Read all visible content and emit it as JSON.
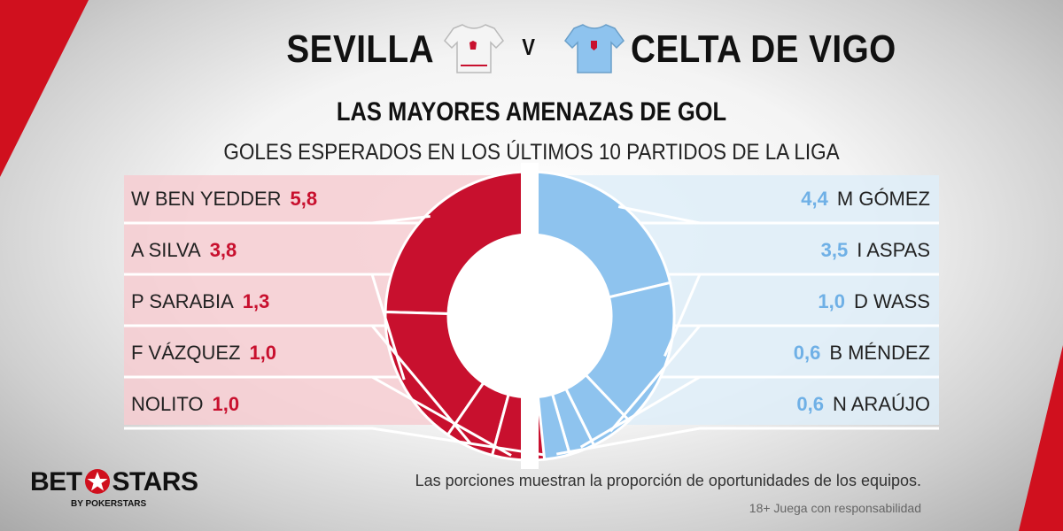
{
  "header": {
    "home_team": "SEVILLA",
    "vs": "V",
    "away_team": "CELTA DE VIGO"
  },
  "title": "LAS MAYORES AMENAZAS DE GOL",
  "subtitle": "GOLES ESPERADOS EN LOS ÚLTIMOS 10 PARTIDOS DE LA LIGA",
  "colors": {
    "home": "#c8102e",
    "home_panel": "#f6cdd1",
    "away": "#8ec3ee",
    "away_panel": "#deedf8",
    "rest": "#e3e3e3"
  },
  "chart_data": {
    "type": "pie",
    "title": "LAS MAYORES AMENAZAS DE GOL",
    "subtitle": "GOLES ESPERADOS EN LOS ÚLTIMOS 10 PARTIDOS DE LA LIGA",
    "series": [
      {
        "name": "SEVILLA",
        "labels": [
          "W BEN YEDDER",
          "A SILVA",
          "P SARABIA",
          "F VÁZQUEZ",
          "NOLITO"
        ],
        "values": [
          5.8,
          3.8,
          1.3,
          1.0,
          1.0
        ],
        "value_labels": [
          "5,8",
          "3,8",
          "1,3",
          "1,0",
          "1,0"
        ]
      },
      {
        "name": "CELTA DE VIGO",
        "labels": [
          "M GÓMEZ",
          "I ASPAS",
          "D WASS",
          "B MÉNDEZ",
          "N ARAÚJO"
        ],
        "values": [
          4.4,
          3.5,
          1.0,
          0.6,
          0.6
        ],
        "value_labels": [
          "4,4",
          "3,5",
          "1,0",
          "0,6",
          "0,6"
        ]
      }
    ]
  },
  "footnote": "Las porciones muestran la proporción de oportunidades de los equipos.",
  "disclaimer": "18+ Juega con responsabilidad",
  "logo": {
    "text_left": "BET",
    "text_right": "STARS",
    "sub": "BY POKERSTARS"
  }
}
